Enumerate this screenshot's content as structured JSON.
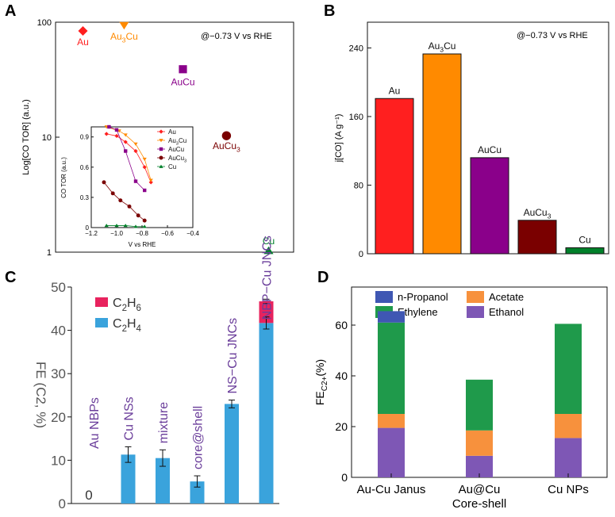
{
  "colors": {
    "au": "#ff1f1f",
    "au3cu": "#ff8a00",
    "aucu": "#8a008a",
    "aucu3": "#7a0000",
    "cu": "#00802a",
    "c2h4": "#3aa3dc",
    "c2h6": "#e8235e",
    "label_purple": "#6a3d9a",
    "n_propanol": "#3f57b3",
    "acetate": "#f7913d",
    "ethylene": "#1f9a4b",
    "ethanol": "#7e57b5"
  },
  "chart_data": [
    {
      "panel": "A",
      "type": "scatter",
      "yscale": "log",
      "ylabel": "Log[CO TOR] (a.u.)",
      "annotation": "@−0.73 V vs RHE",
      "ylim": [
        1,
        100
      ],
      "yticks": [
        "1",
        "10",
        "100"
      ],
      "points": [
        {
          "name": "Au",
          "label_main": "Au",
          "label_sub": "",
          "x": 0.115,
          "y": 84,
          "marker": "diamond",
          "color_key": "au"
        },
        {
          "name": "Au3Cu",
          "label_main": "Au",
          "label_sub": "3",
          "label_tail": "Cu",
          "x": 0.288,
          "y": 94,
          "marker": "triangle-down",
          "color_key": "au3cu"
        },
        {
          "name": "AuCu",
          "label_main": "AuCu",
          "label_sub": "",
          "x": 0.535,
          "y": 39,
          "marker": "square",
          "color_key": "aucu"
        },
        {
          "name": "AuCu3",
          "label_main": "AuCu",
          "label_sub": "3",
          "x": 0.718,
          "y": 10.3,
          "marker": "circle",
          "color_key": "aucu3"
        },
        {
          "name": "Cu",
          "label_main": "Cu",
          "label_sub": "",
          "x": 0.895,
          "y": 1.03,
          "marker": "triangle-up",
          "color_key": "cu"
        }
      ],
      "inset": {
        "xlabel": "V vs RHE",
        "ylabel": "CO TOR (a.u.)",
        "xlim": [
          -1.2,
          -0.4
        ],
        "ylim": [
          0,
          1.0
        ],
        "xticks": [
          "−1.2",
          "−1.0",
          "−0.8",
          "−0.6",
          "−0.4"
        ],
        "yticks": [
          "0",
          "0.3",
          "0.6",
          "0.9"
        ],
        "legend": [
          {
            "label_main": "Au",
            "label_sub": "",
            "marker": "diamond",
            "color_key": "au"
          },
          {
            "label_main": "Au",
            "label_sub": "3",
            "label_tail": "Cu",
            "marker": "triangle-down",
            "color_key": "au3cu"
          },
          {
            "label_main": "AuCu",
            "label_sub": "",
            "marker": "square",
            "color_key": "aucu"
          },
          {
            "label_main": "AuCu",
            "label_sub": "3",
            "marker": "circle",
            "color_key": "aucu3"
          },
          {
            "label_main": "Cu",
            "label_sub": "",
            "marker": "triangle-up",
            "color_key": "cu"
          }
        ],
        "series": [
          {
            "name": "Au",
            "marker": "diamond",
            "color_key": "au",
            "x": [
              -1.08,
              -1.0,
              -0.93,
              -0.85,
              -0.78,
              -0.73
            ],
            "y": [
              0.93,
              0.91,
              0.85,
              0.76,
              0.6,
              0.45
            ]
          },
          {
            "name": "Au3Cu",
            "marker": "triangle-down",
            "color_key": "au3cu",
            "x": [
              -1.08,
              -0.98,
              -0.93,
              -0.85,
              -0.78,
              -0.73
            ],
            "y": [
              1.0,
              0.96,
              0.92,
              0.83,
              0.68,
              0.47
            ]
          },
          {
            "name": "AuCu",
            "marker": "square",
            "color_key": "aucu",
            "x": [
              -1.06,
              -1.0,
              -0.93,
              -0.85,
              -0.78
            ],
            "y": [
              1.0,
              0.97,
              0.76,
              0.46,
              0.37
            ]
          },
          {
            "name": "AuCu3",
            "marker": "circle",
            "color_key": "aucu3",
            "x": [
              -1.1,
              -1.03,
              -0.97,
              -0.9,
              -0.83,
              -0.78
            ],
            "y": [
              0.45,
              0.34,
              0.27,
              0.21,
              0.12,
              0.07
            ]
          },
          {
            "name": "Cu",
            "marker": "triangle-up",
            "color_key": "cu",
            "x": [
              -1.08,
              -1.0,
              -0.93,
              -0.85,
              -0.78
            ],
            "y": [
              0.02,
              0.02,
              0.02,
              0.01,
              0.01
            ]
          }
        ]
      }
    },
    {
      "panel": "B",
      "type": "bar",
      "ylabel": "j[CO] (A g⁻¹)",
      "annotation": "@−0.73 V vs RHE",
      "ylim": [
        0,
        270
      ],
      "yticks": [
        0,
        80,
        160,
        240
      ],
      "bars": [
        {
          "label_main": "Au",
          "label_sub": "",
          "value": 181,
          "color_key": "au"
        },
        {
          "label_main": "Au",
          "label_sub": "3",
          "label_tail": "Cu",
          "value": 233,
          "color_key": "au3cu"
        },
        {
          "label_main": "AuCu",
          "label_sub": "",
          "value": 112,
          "color_key": "aucu"
        },
        {
          "label_main": "AuCu",
          "label_sub": "3",
          "value": 39,
          "color_key": "aucu3"
        },
        {
          "label_main": "Cu",
          "label_sub": "",
          "value": 7,
          "color_key": "cu"
        }
      ]
    },
    {
      "panel": "C",
      "type": "bar",
      "stacked": true,
      "ylabel": "FE (C2, %)",
      "ylim": [
        0,
        50
      ],
      "yticks": [
        0,
        10,
        20,
        30,
        40,
        50
      ],
      "legend": [
        {
          "label_main": "C",
          "label_sub": "2",
          "label_tail": "H",
          "label_sub2": "6",
          "color_key": "c2h6"
        },
        {
          "label_main": "C",
          "label_sub": "2",
          "label_tail": "H",
          "label_sub2": "4",
          "color_key": "c2h4"
        }
      ],
      "categories": [
        "Au NBPs",
        "Cu NSs",
        "mixture",
        "core@shell",
        "NS−Cu JNCs",
        "NBP−Cu JNCs"
      ],
      "zero_label": "0",
      "series": [
        {
          "name": "C2H4",
          "color_key": "c2h4",
          "values": [
            0,
            11.3,
            10.5,
            5.1,
            23.0,
            41.7
          ],
          "errors": [
            0,
            1.8,
            1.9,
            1.3,
            0.9,
            1.4
          ]
        },
        {
          "name": "C2H6",
          "color_key": "c2h6",
          "values": [
            0,
            0,
            0,
            0,
            0,
            5.0
          ],
          "errors": [
            0,
            0,
            0,
            0,
            0,
            0.5
          ]
        }
      ]
    },
    {
      "panel": "D",
      "type": "bar",
      "stacked": true,
      "ylabel_main": "FE",
      "ylabel_sub": "C2+",
      "ylabel_tail": "(%)",
      "ylim": [
        0,
        75
      ],
      "yticks": [
        0,
        20,
        40,
        60
      ],
      "categories": [
        {
          "line1": "Au-Cu Janus",
          "line2": ""
        },
        {
          "line1": "Au@Cu",
          "line2": "Core-shell"
        },
        {
          "line1": "Cu NPs",
          "line2": ""
        }
      ],
      "legend": [
        {
          "label": "n-Propanol",
          "color_key": "n_propanol"
        },
        {
          "label": "Acetate",
          "color_key": "acetate"
        },
        {
          "label": "Ethylene",
          "color_key": "ethylene"
        },
        {
          "label": "Ethanol",
          "color_key": "ethanol"
        }
      ],
      "series": [
        {
          "name": "Ethanol",
          "color_key": "ethanol",
          "values": [
            19.5,
            8.5,
            15.5
          ]
        },
        {
          "name": "Acetate",
          "color_key": "acetate",
          "values": [
            5.5,
            10.0,
            9.5
          ]
        },
        {
          "name": "Ethylene",
          "color_key": "ethylene",
          "values": [
            36.0,
            20.0,
            35.5
          ]
        },
        {
          "name": "n-Propanol",
          "color_key": "n_propanol",
          "values": [
            4.5,
            0,
            0
          ]
        }
      ]
    }
  ],
  "panel_labels": [
    "A",
    "B",
    "C",
    "D"
  ]
}
